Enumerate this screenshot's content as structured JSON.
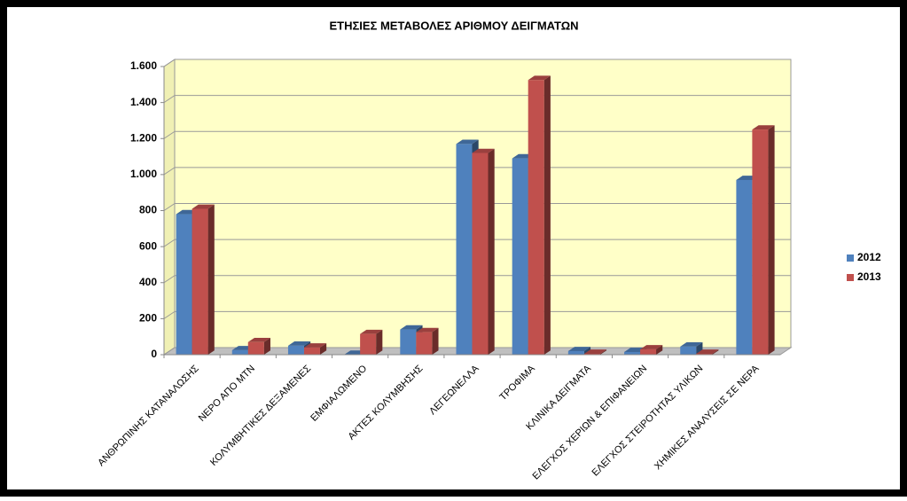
{
  "chart_data": {
    "type": "bar3d",
    "title": "ΕΤΗΣΙΕΣ ΜΕΤΑΒΟΛΕΣ ΑΡΙΘΜΟΥ ΔΕΙΓΜΑΤΩΝ",
    "categories": [
      "ΑΝΘΡΩΠΙΝΗΣ ΚΑΤΑΝΑΛΩΣΗΣ",
      "ΝΕΡΟ ΑΠΟ ΜΤΝ",
      "ΚΟΛΥΜΒΗΤΙΚΕΣ ΔΕΞΑΜΕΝΕΣ",
      "ΕΜΦΙΑΛΩΜΕΝΟ",
      "ΑΚΤΕΣ ΚΟΛΥΜΒΗΣΗΣ",
      "ΛΕΓΕΩΝΕΛΛΑ",
      "ΤΡΟΦΙΜΑ",
      "ΚΛΙΝΙΚΑ ΔΕΙΓΜΑΤΑ",
      "ΕΛΕΓΧΟΣ ΧΕΡΙΩΝ & ΕΠΙΦΑΝΕΙΩΝ",
      "ΕΛΕΓΧΟΣ ΣΤΕΙΡΟΤΗΤΑΣ ΥΛΙΚΩΝ",
      "ΧΗΜΙΚΕΣ ΑΝΑΛΥΣΕΙΣ ΣΕ ΝΕΡΑ"
    ],
    "series": [
      {
        "name": "2012",
        "color": "#4f81bd",
        "values": [
          780,
          25,
          50,
          0,
          140,
          1170,
          1090,
          20,
          15,
          45,
          970
        ]
      },
      {
        "name": "2013",
        "color": "#c0504d",
        "values": [
          810,
          70,
          40,
          115,
          125,
          1120,
          1525,
          5,
          30,
          5,
          1250
        ]
      }
    ],
    "ylim": [
      0,
      1600
    ],
    "yticks": [
      0,
      200,
      400,
      600,
      800,
      {
        "value": 1000,
        "label": "1.000"
      },
      {
        "value": 1200,
        "label": "1.200"
      },
      {
        "value": 1400,
        "label": "1.400"
      },
      {
        "value": 1600,
        "label": "1.600"
      }
    ],
    "grid": true,
    "legend": "right"
  }
}
